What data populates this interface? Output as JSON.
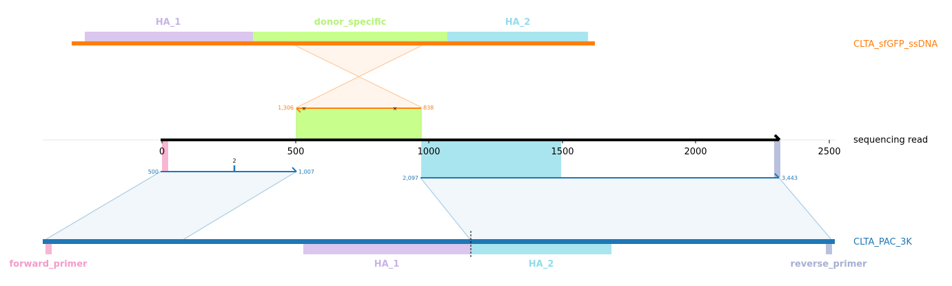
{
  "colors": {
    "donor": "#ff7f0e",
    "target": "#1f77b4",
    "read": "#000000",
    "HA_1": "#dbc6ee",
    "donor_specific": "#c8ff8c",
    "HA_2": "#a9e5ee",
    "forward_primer": "#f7b6d2",
    "reverse_primer": "#b8c0dc"
  },
  "donor": {
    "name": "CLTA_sfGFP_ssDNA",
    "features": {
      "HA_1": "HA_1",
      "donor_specific": "donor_specific",
      "HA_2": "HA_2"
    },
    "alignment": {
      "start_label": "1,306",
      "end_label": "838"
    }
  },
  "read": {
    "name": "sequencing read",
    "ticks": [
      "0",
      "500",
      "1000",
      "1500",
      "2000",
      "2500"
    ]
  },
  "target": {
    "name": "CLTA_PAC_3K",
    "features": {
      "forward_primer": "forward_primer",
      "HA_1": "HA_1",
      "HA_2": "HA_2",
      "reverse_primer": "reverse_primer"
    },
    "alignment_1": {
      "start_label": "500",
      "end_label": "1,007",
      "mismatch_label": "2"
    },
    "alignment_2": {
      "start_label": "2,097",
      "end_label": "3,443"
    }
  }
}
